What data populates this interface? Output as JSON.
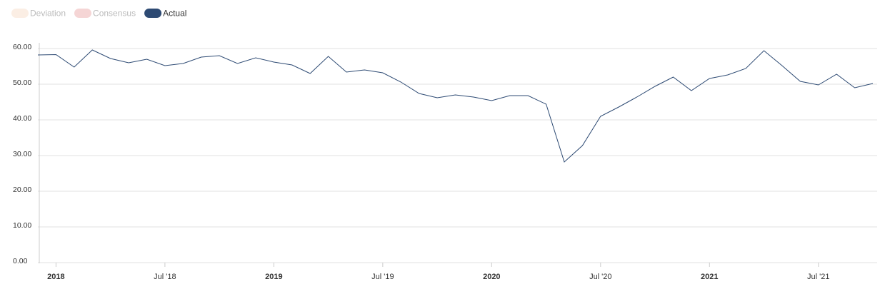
{
  "chart_data": {
    "type": "line",
    "categories": [
      null,
      "2018",
      null,
      null,
      null,
      null,
      null,
      "Jul '18",
      null,
      null,
      null,
      null,
      null,
      "2019",
      null,
      null,
      null,
      null,
      null,
      "Jul '19",
      null,
      null,
      null,
      null,
      null,
      "2020",
      null,
      null,
      null,
      null,
      null,
      "Jul '20",
      null,
      null,
      null,
      null,
      null,
      "2021",
      null,
      null,
      null,
      null,
      null,
      "Jul '21",
      null,
      null,
      null
    ],
    "series": [
      {
        "name": "Deviation",
        "color": "#fbeee4",
        "hidden": true,
        "values": [
          null,
          null,
          null,
          null,
          null,
          null,
          null,
          null,
          null,
          null,
          null,
          null,
          null,
          null,
          null,
          null,
          null,
          null,
          null,
          null,
          null,
          null,
          null,
          null,
          null,
          null,
          null,
          null,
          null,
          null,
          null,
          null,
          null,
          null,
          null,
          null,
          null,
          null,
          null,
          null,
          null,
          null,
          null,
          null,
          null,
          null,
          null
        ]
      },
      {
        "name": "Consensus",
        "color": "#f5d5d5",
        "hidden": true,
        "values": [
          null,
          null,
          null,
          null,
          null,
          null,
          null,
          null,
          null,
          null,
          null,
          null,
          null,
          null,
          null,
          null,
          null,
          null,
          null,
          null,
          null,
          null,
          null,
          null,
          null,
          null,
          null,
          null,
          null,
          null,
          null,
          null,
          null,
          null,
          null,
          null,
          null,
          null,
          null,
          null,
          null,
          null,
          null,
          null,
          null,
          null,
          null
        ]
      },
      {
        "name": "Actual",
        "color": "#2d4a73",
        "hidden": false,
        "values": [
          58.2,
          58.3,
          54.8,
          59.6,
          57.2,
          56.0,
          57.0,
          55.2,
          55.8,
          57.6,
          58.0,
          55.8,
          57.4,
          56.2,
          55.4,
          53.0,
          57.8,
          53.4,
          54.0,
          53.2,
          50.6,
          47.4,
          46.2,
          47.0,
          46.4,
          45.4,
          46.8,
          46.8,
          44.4,
          28.2,
          32.8,
          41.0,
          43.6,
          46.4,
          49.4,
          52.0,
          48.2,
          51.6,
          52.6,
          54.4,
          59.4,
          55.2,
          50.8,
          49.8,
          52.8,
          49.0,
          50.2
        ]
      }
    ],
    "ylim": [
      0,
      60
    ],
    "yticks": [
      {
        "value": 0,
        "label": "0.00"
      },
      {
        "value": 10,
        "label": "10.00"
      },
      {
        "value": 20,
        "label": "20.00"
      },
      {
        "value": 30,
        "label": "30.00"
      },
      {
        "value": 40,
        "label": "40.00"
      },
      {
        "value": 50,
        "label": "50.00"
      },
      {
        "value": 60,
        "label": "60.00"
      }
    ],
    "grid": true,
    "legend": "top-left"
  }
}
